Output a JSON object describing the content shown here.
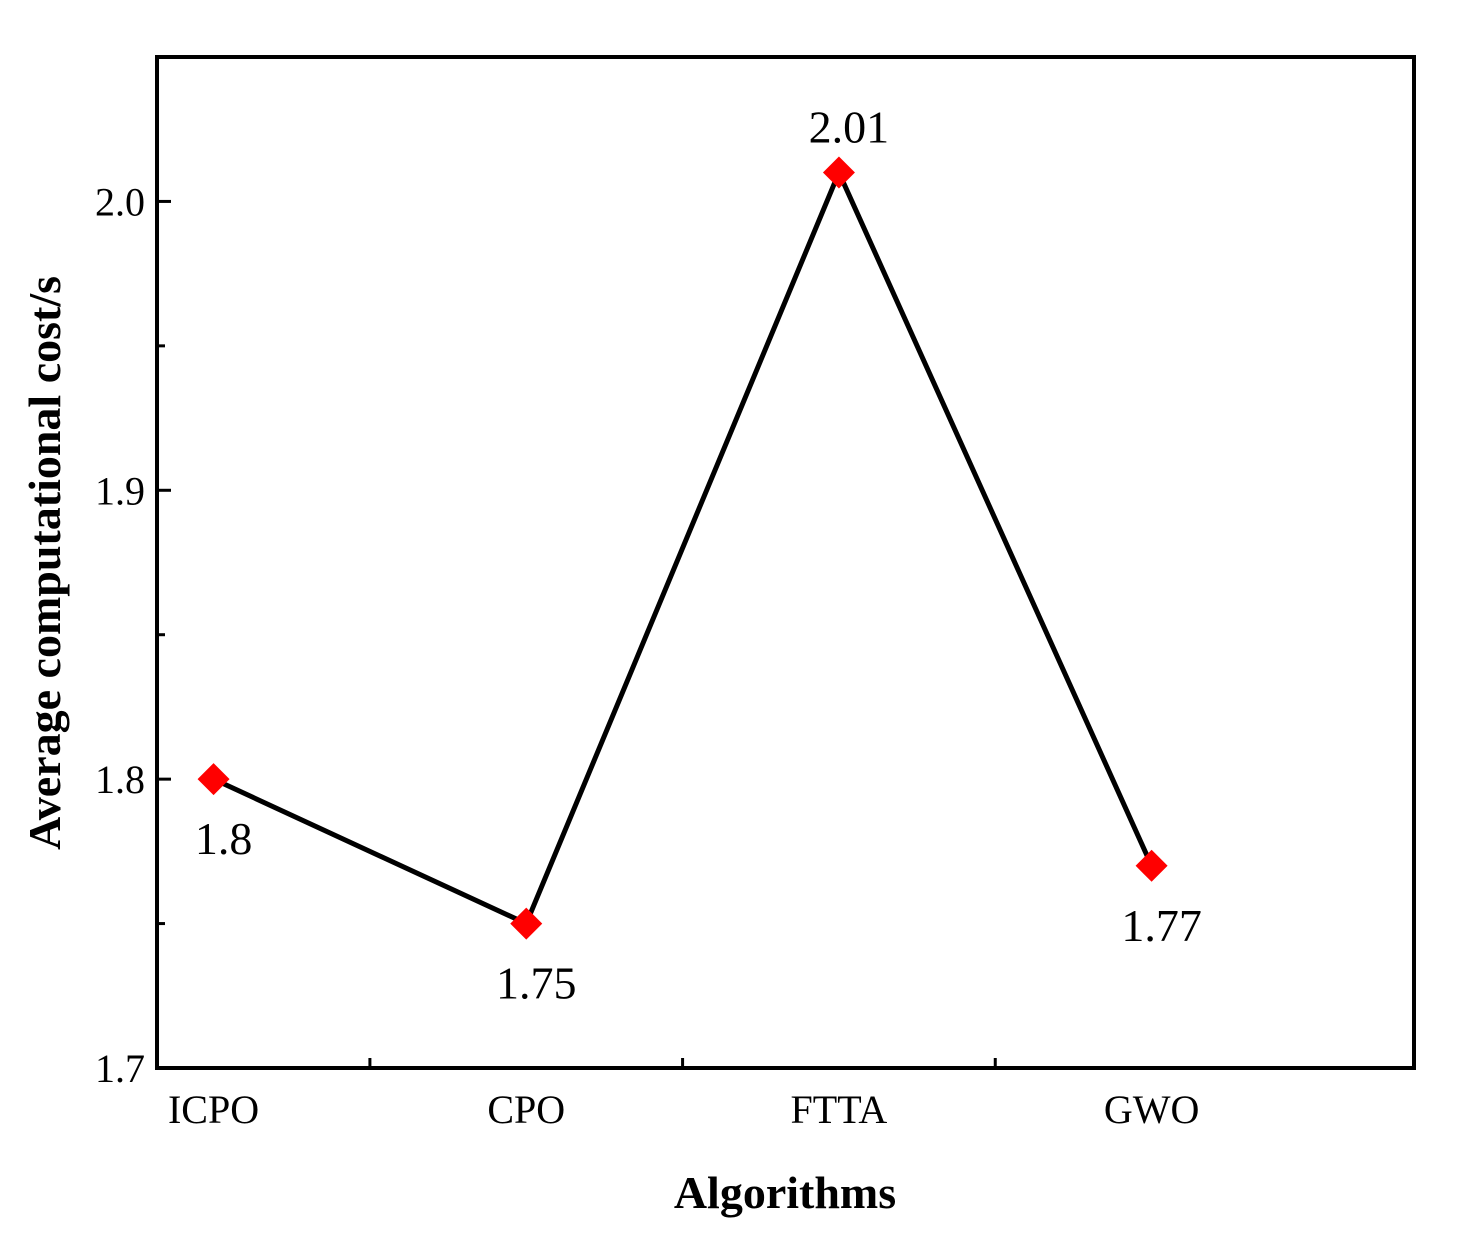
{
  "chart_data": {
    "type": "line",
    "title": "",
    "xlabel": "Algorithms",
    "ylabel": "Average computational cost/s",
    "categories": [
      "ICPO",
      "CPO",
      "FTTA",
      "GWO"
    ],
    "values": [
      1.8,
      1.75,
      2.01,
      1.77
    ],
    "data_labels": [
      "1.8",
      "1.75",
      "2.01",
      "1.77"
    ],
    "ylim": [
      1.7,
      2.05
    ],
    "yticks": [
      1.7,
      1.8,
      1.9,
      2.0
    ],
    "ytick_labels": [
      "1.7",
      "1.8",
      "1.9",
      "2.0"
    ],
    "grid": false,
    "legend": "none",
    "marker": "diamond",
    "colors": {
      "line": "#000000",
      "marker": "#ff0000"
    }
  }
}
